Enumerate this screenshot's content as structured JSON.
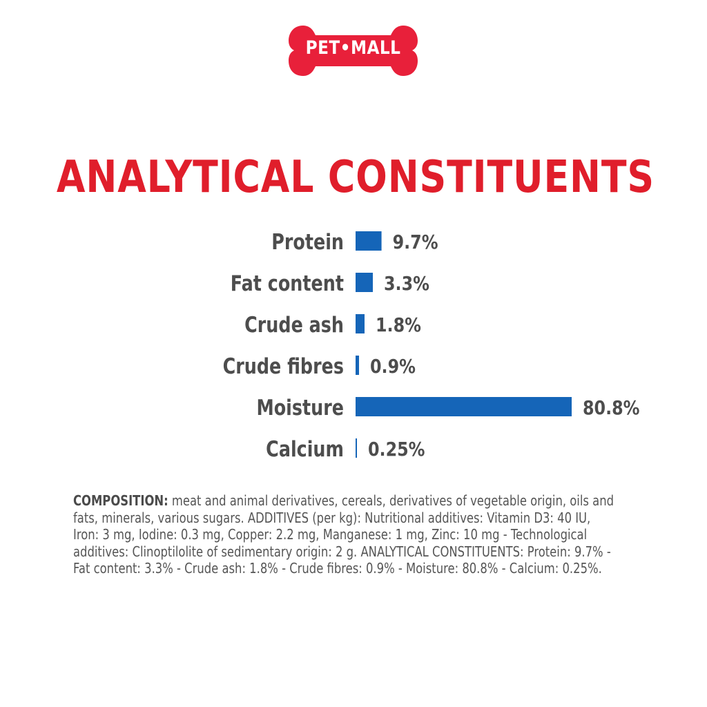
{
  "brand": {
    "logo_text": "PET•MALL",
    "logo_color": "#e8203a"
  },
  "heading": "ANALYTICAL CONSTITUENTS",
  "colors": {
    "title": "#e01e2b",
    "bar": "#1565b8",
    "label": "#4d4d4d"
  },
  "chart_data": {
    "type": "bar",
    "orientation": "horizontal",
    "categories": [
      "Protein",
      "Fat content",
      "Crude ash",
      "Crude fibres",
      "Moisture",
      "Calcium"
    ],
    "values": [
      9.7,
      3.3,
      1.8,
      0.9,
      80.8,
      0.25
    ],
    "value_labels": [
      "9.7%",
      "3.3%",
      "1.8%",
      "0.9%",
      "80.8%",
      "0.25%"
    ],
    "title": "ANALYTICAL CONSTITUENTS",
    "xlabel": "",
    "ylabel": "",
    "unit": "%",
    "xlim": [
      0,
      80.8
    ],
    "grid": false,
    "legend": "none"
  },
  "composition": {
    "label": "COMPOSITION:",
    "text": " meat and animal derivatives, cereals, derivatives of vegetable origin, oils and fats, minerals, various sugars. ADDITIVES (per kg): Nutritional additives: Vitamin D3: 40 IU, Iron: 3 mg, Iodine: 0.3 mg, Copper: 2.2 mg, Manganese: 1 mg, Zinc: 10 mg - Technological additives: Clinoptilolite of sedimentary origin: 2 g. ANALYTICAL CONSTITUENTS: Protein: 9.7% - Fat content: 3.3% - Crude ash: 1.8% - Crude fibres: 0.9% - Moisture: 80.8% - Calcium: 0.25%."
  }
}
